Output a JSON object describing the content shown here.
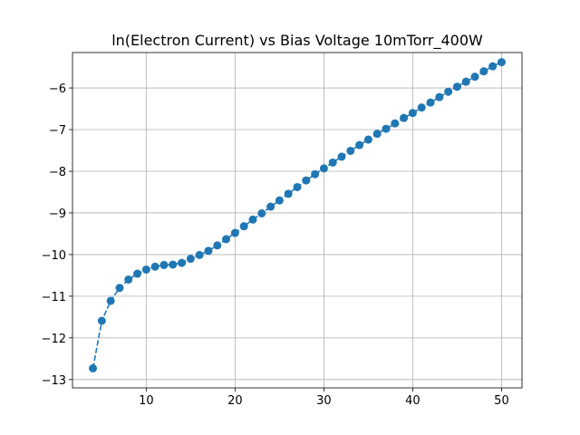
{
  "chart_data": {
    "type": "line",
    "title": "ln(Electron Current) vs Bias Voltage 10mTorr_400W",
    "xlabel": "",
    "ylabel": "",
    "xlim": [
      1.7,
      52.3
    ],
    "ylim": [
      -13.2,
      -5.15
    ],
    "xticks": [
      10,
      20,
      30,
      40,
      50
    ],
    "yticks": [
      -13,
      -12,
      -11,
      -10,
      -9,
      -8,
      -7,
      -6
    ],
    "grid": true,
    "line_style": "dashed",
    "marker": "circle",
    "series": [
      {
        "color": "#1f77b4",
        "x": [
          4,
          5,
          6,
          7,
          8,
          9,
          10,
          11,
          12,
          13,
          14,
          15,
          16,
          17,
          18,
          19,
          20,
          21,
          22,
          23,
          24,
          25,
          26,
          27,
          28,
          29,
          30,
          31,
          32,
          33,
          34,
          35,
          36,
          37,
          38,
          39,
          40,
          41,
          42,
          43,
          44,
          45,
          46,
          47,
          48,
          49,
          50
        ],
        "y": [
          -12.73,
          -11.59,
          -11.11,
          -10.8,
          -10.6,
          -10.46,
          -10.36,
          -10.29,
          -10.25,
          -10.24,
          -10.2,
          -10.1,
          -10.01,
          -9.91,
          -9.78,
          -9.63,
          -9.48,
          -9.32,
          -9.16,
          -9.01,
          -8.85,
          -8.7,
          -8.54,
          -8.38,
          -8.22,
          -8.07,
          -7.93,
          -7.79,
          -7.65,
          -7.51,
          -7.37,
          -7.24,
          -7.1,
          -6.98,
          -6.85,
          -6.72,
          -6.6,
          -6.47,
          -6.35,
          -6.22,
          -6.09,
          -5.97,
          -5.85,
          -5.73,
          -5.6,
          -5.48,
          -5.38
        ]
      }
    ]
  }
}
